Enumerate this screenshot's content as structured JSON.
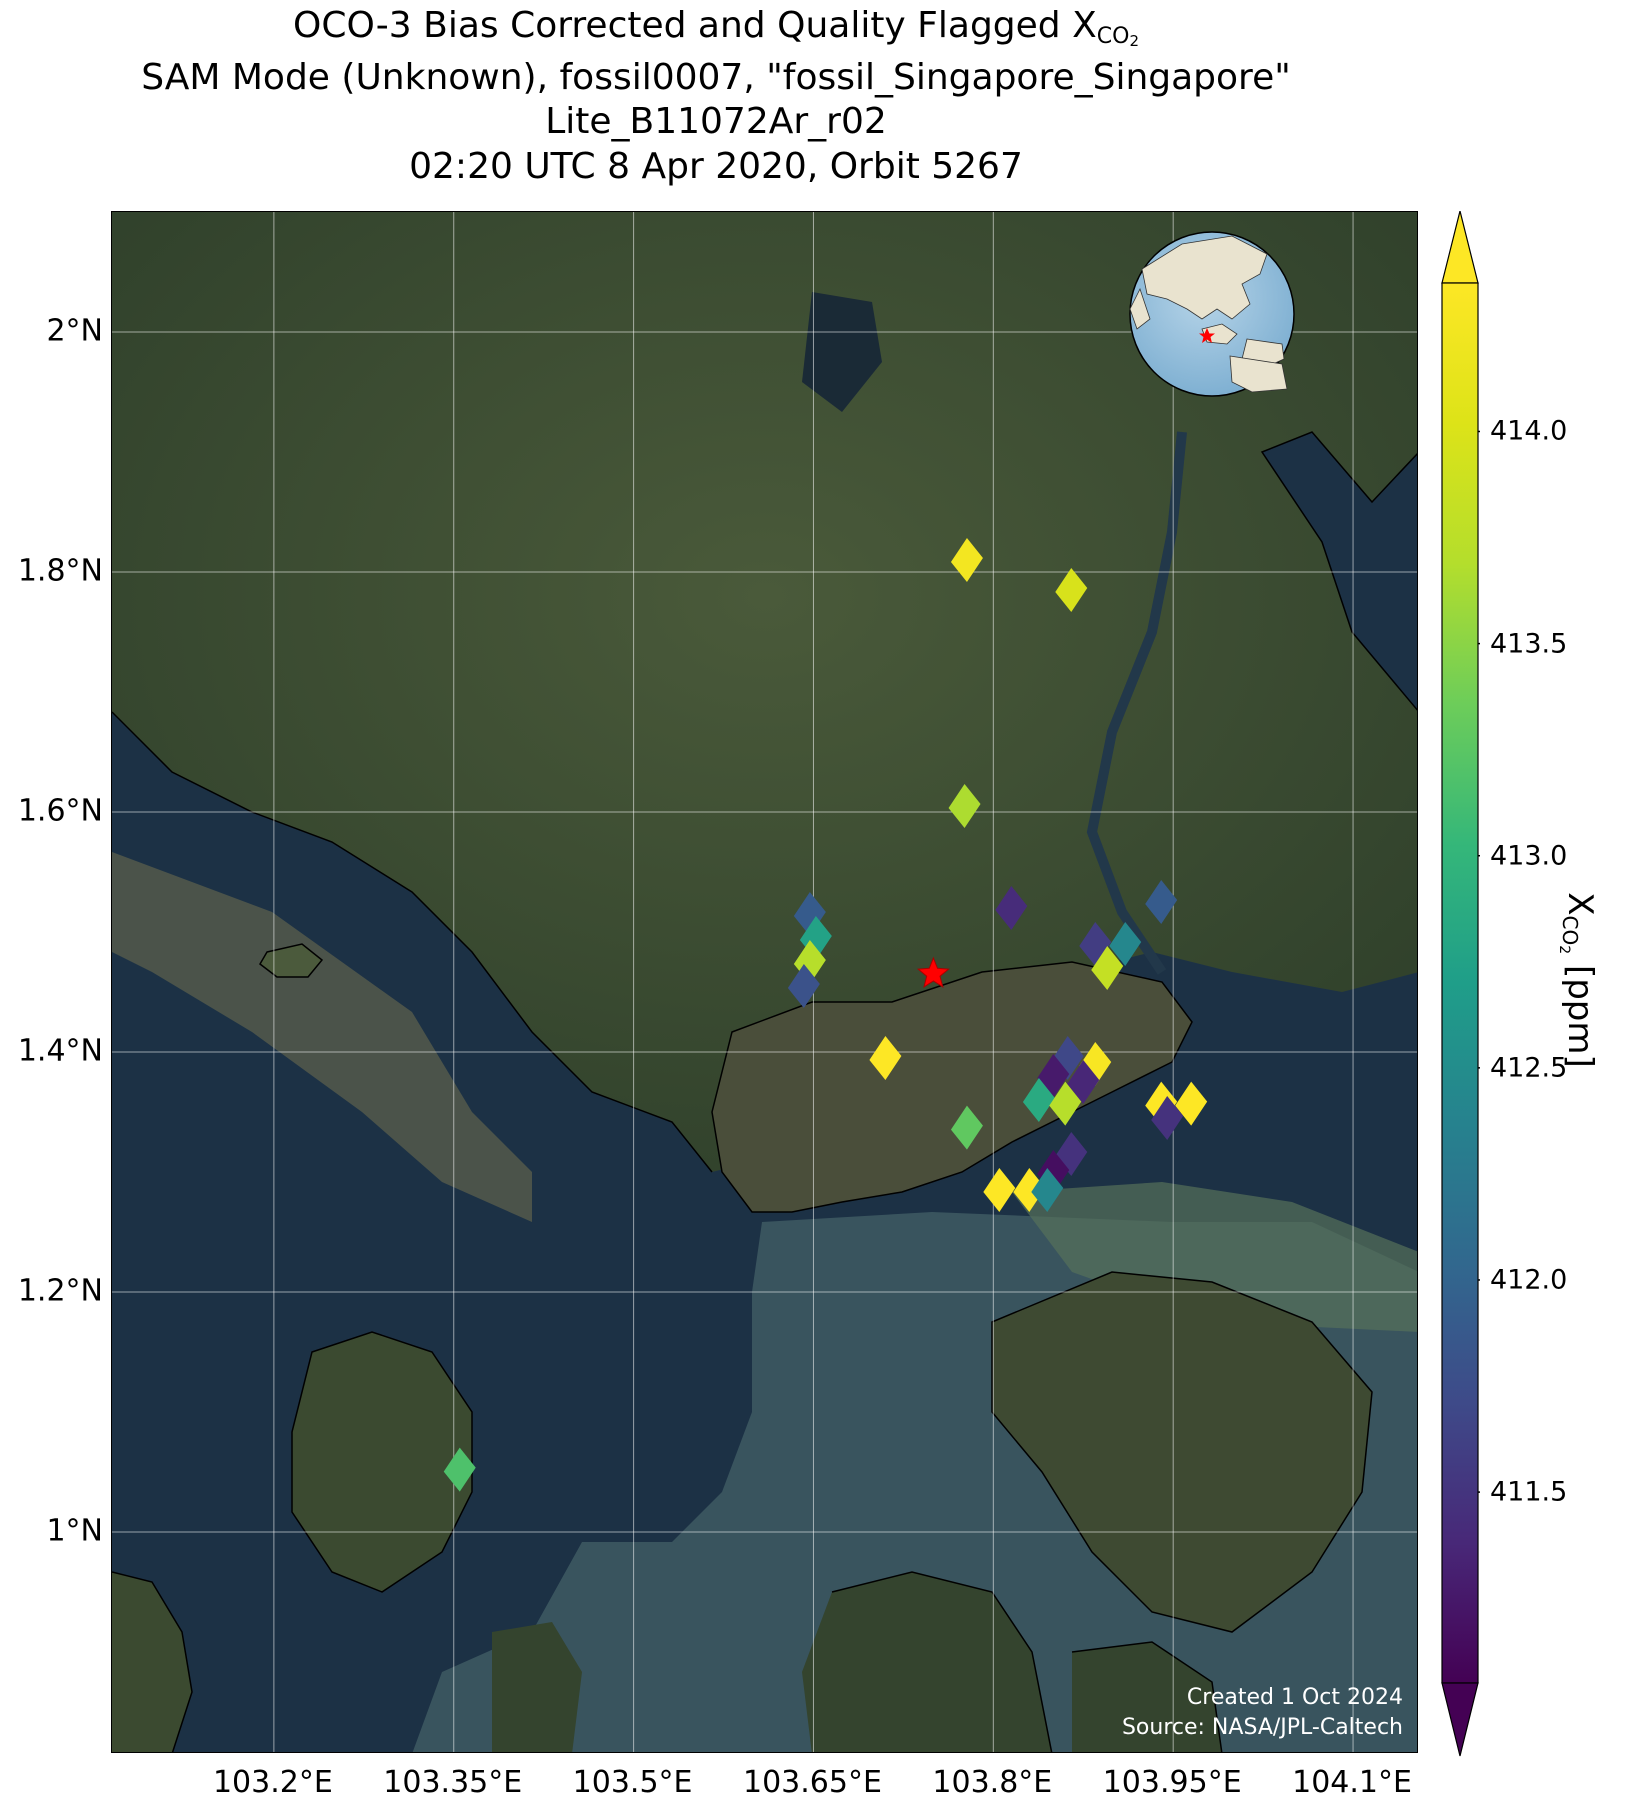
{
  "title": {
    "line1_main": "OCO-3 Bias Corrected and Quality Flagged X",
    "line1_sub": "CO",
    "line1_subsub": "2",
    "line2": "SAM Mode (Unknown), fossil0007, \"fossil_Singapore_Singapore\"",
    "line3": "Lite_B11072Ar_r02",
    "line4": "02:20 UTC 8 Apr 2020, Orbit 5267"
  },
  "axes": {
    "lon_range": [
      103.065,
      104.155
    ],
    "lat_range": [
      0.815,
      2.1
    ],
    "x_ticks": [
      {
        "value": 103.2,
        "label": "103.2°E"
      },
      {
        "value": 103.35,
        "label": "103.35°E"
      },
      {
        "value": 103.5,
        "label": "103.5°E"
      },
      {
        "value": 103.65,
        "label": "103.65°E"
      },
      {
        "value": 103.8,
        "label": "103.8°E"
      },
      {
        "value": 103.95,
        "label": "103.95°E"
      },
      {
        "value": 104.1,
        "label": "104.1°E"
      }
    ],
    "y_ticks": [
      {
        "value": 1.0,
        "label": "1°N"
      },
      {
        "value": 1.2,
        "label": "1.2°N"
      },
      {
        "value": 1.4,
        "label": "1.4°N"
      },
      {
        "value": 1.6,
        "label": "1.6°N"
      },
      {
        "value": 1.8,
        "label": "1.8°N"
      },
      {
        "value": 2.0,
        "label": "2°N"
      }
    ],
    "grid": true
  },
  "target": {
    "lon": 103.75,
    "lat": 1.465,
    "marker": "red-star"
  },
  "colorbar": {
    "title_main": "X",
    "title_sub": "CO",
    "title_subsub": "2",
    "title_unit": " [ppm]",
    "colormap": "viridis",
    "range": [
      411.05,
      414.35
    ],
    "extend": "both",
    "ticks": [
      {
        "value": 411.5,
        "label": "411.5"
      },
      {
        "value": 412.0,
        "label": "412.0"
      },
      {
        "value": 412.5,
        "label": "412.5"
      },
      {
        "value": 413.0,
        "label": "413.0"
      },
      {
        "value": 413.5,
        "label": "413.5"
      },
      {
        "value": 414.0,
        "label": "414.0"
      }
    ]
  },
  "chart_data": {
    "type": "scatter",
    "series": [
      {
        "values": [
          {
            "lon": 103.778,
            "lat": 1.81,
            "xco2": 414.2
          },
          {
            "lon": 103.865,
            "lat": 1.785,
            "xco2": 413.95
          },
          {
            "lon": 103.776,
            "lat": 1.605,
            "xco2": 413.65
          },
          {
            "lon": 103.815,
            "lat": 1.52,
            "xco2": 411.55
          },
          {
            "lon": 103.94,
            "lat": 1.525,
            "xco2": 412.0
          },
          {
            "lon": 103.885,
            "lat": 1.49,
            "xco2": 411.7
          },
          {
            "lon": 103.91,
            "lat": 1.49,
            "xco2": 412.5
          },
          {
            "lon": 103.895,
            "lat": 1.47,
            "xco2": 413.8
          },
          {
            "lon": 103.647,
            "lat": 1.515,
            "xco2": 412.0
          },
          {
            "lon": 103.652,
            "lat": 1.495,
            "xco2": 412.8
          },
          {
            "lon": 103.647,
            "lat": 1.475,
            "xco2": 413.7
          },
          {
            "lon": 103.642,
            "lat": 1.455,
            "xco2": 411.9
          },
          {
            "lon": 103.71,
            "lat": 1.395,
            "xco2": 414.3
          },
          {
            "lon": 103.862,
            "lat": 1.395,
            "xco2": 411.8
          },
          {
            "lon": 103.885,
            "lat": 1.39,
            "xco2": 414.25
          },
          {
            "lon": 103.85,
            "lat": 1.38,
            "xco2": 411.4
          },
          {
            "lon": 103.875,
            "lat": 1.375,
            "xco2": 411.5
          },
          {
            "lon": 103.838,
            "lat": 1.36,
            "xco2": 412.9
          },
          {
            "lon": 103.86,
            "lat": 1.357,
            "xco2": 413.7
          },
          {
            "lon": 103.94,
            "lat": 1.357,
            "xco2": 414.3
          },
          {
            "lon": 103.965,
            "lat": 1.357,
            "xco2": 414.3
          },
          {
            "lon": 103.945,
            "lat": 1.345,
            "xco2": 411.6
          },
          {
            "lon": 103.778,
            "lat": 1.337,
            "xco2": 413.3
          },
          {
            "lon": 103.865,
            "lat": 1.315,
            "xco2": 411.6
          },
          {
            "lon": 103.85,
            "lat": 1.3,
            "xco2": 411.3
          },
          {
            "lon": 103.805,
            "lat": 1.285,
            "xco2": 414.3
          },
          {
            "lon": 103.83,
            "lat": 1.285,
            "xco2": 414.3
          },
          {
            "lon": 103.845,
            "lat": 1.285,
            "xco2": 412.5
          },
          {
            "lon": 103.355,
            "lat": 1.052,
            "xco2": 413.2
          }
        ]
      }
    ]
  },
  "credit": {
    "line1": "Created 1 Oct 2024",
    "line2": "Source: NASA/JPL-Caltech"
  }
}
